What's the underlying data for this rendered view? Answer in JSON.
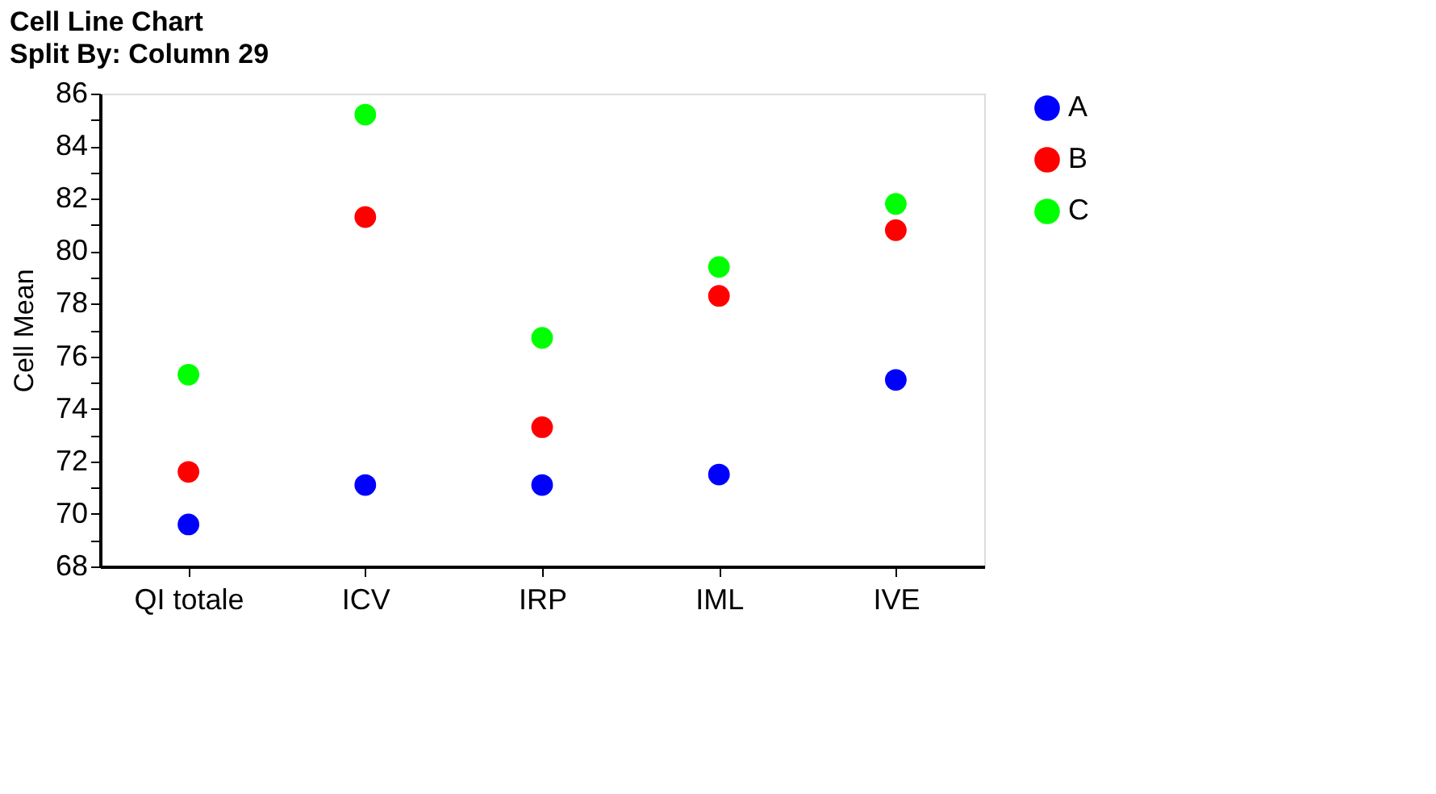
{
  "chart_data": {
    "type": "scatter",
    "title": "Cell Line Chart",
    "subtitle": "Split By: Column 29",
    "ylabel": "Cell Mean",
    "categories": [
      "QI totale",
      "ICV",
      "IRP",
      "IML",
      "IVE"
    ],
    "series": [
      {
        "name": "A",
        "color": "#0000ff",
        "values": [
          69.6,
          71.1,
          71.1,
          71.5,
          75.1
        ]
      },
      {
        "name": "B",
        "color": "#ff0000",
        "values": [
          71.6,
          81.3,
          73.3,
          78.3,
          80.8
        ]
      },
      {
        "name": "C",
        "color": "#00ff00",
        "values": [
          75.3,
          85.2,
          76.7,
          79.4,
          81.8
        ]
      }
    ],
    "ylim": [
      68,
      86
    ],
    "yticks": [
      68,
      {
        "value": 69,
        "label": null
      },
      70,
      {
        "value": 71,
        "label": null
      },
      72,
      {
        "value": 73,
        "label": null
      },
      74,
      {
        "value": 75,
        "label": null
      },
      76,
      {
        "value": 77,
        "label": null
      },
      78,
      {
        "value": 79,
        "label": null
      },
      80,
      {
        "value": 81,
        "label": null
      },
      82,
      {
        "value": 83,
        "label": null
      },
      84,
      {
        "value": 85,
        "label": null
      },
      86
    ],
    "grid": false,
    "legend": "right",
    "marker": "circle"
  }
}
